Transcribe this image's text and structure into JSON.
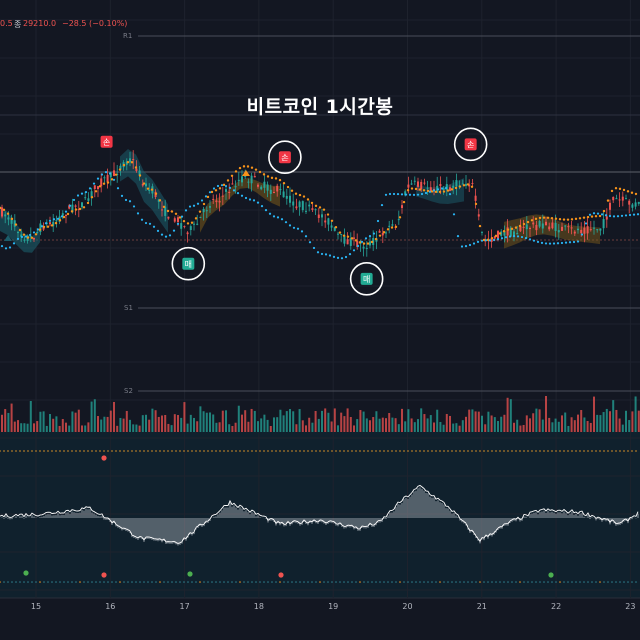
{
  "header": {
    "left_fragment": "0.5",
    "close_label": "종",
    "close_value": "29210.0",
    "change": "−28.5 (−0.10%)"
  },
  "colors": {
    "background": "#131722",
    "lower_panel": "#0f2a36",
    "candle_up": "#26a69a",
    "candle_down": "#ef5350",
    "ma_orange": "#f7931a",
    "ma_cyan": "#29b6f6",
    "cloud_teal": "#1b5d6b",
    "cloud_orange": "#7a5a1a",
    "sell_badge": "#f23645",
    "buy_badge": "#22ab94"
  },
  "chart_data": {
    "type": "candlestick",
    "title": "비트코인 1시간봉",
    "x_ticks": [
      "15",
      "16",
      "17",
      "18",
      "19",
      "20",
      "21",
      "22",
      "23"
    ],
    "levels": [
      {
        "label": "R1"
      },
      {
        "label": "S1"
      },
      {
        "label": "S2"
      }
    ],
    "signals": [
      {
        "type": "sell",
        "label": "손",
        "circled": false,
        "day": 15.95
      },
      {
        "type": "buy",
        "label": "매",
        "circled": true,
        "day": 17.05
      },
      {
        "type": "sell",
        "label": "손",
        "circled": true,
        "day": 18.35
      },
      {
        "type": "buy",
        "label": "매",
        "circled": true,
        "day": 19.45
      },
      {
        "type": "sell",
        "label": "손",
        "circled": true,
        "day": 20.85
      }
    ],
    "indicators": [
      "price candles",
      "moving average (orange)",
      "moving average (cyan)",
      "cloud bands",
      "volume histogram",
      "oscillator histogram",
      "signal dots"
    ]
  }
}
